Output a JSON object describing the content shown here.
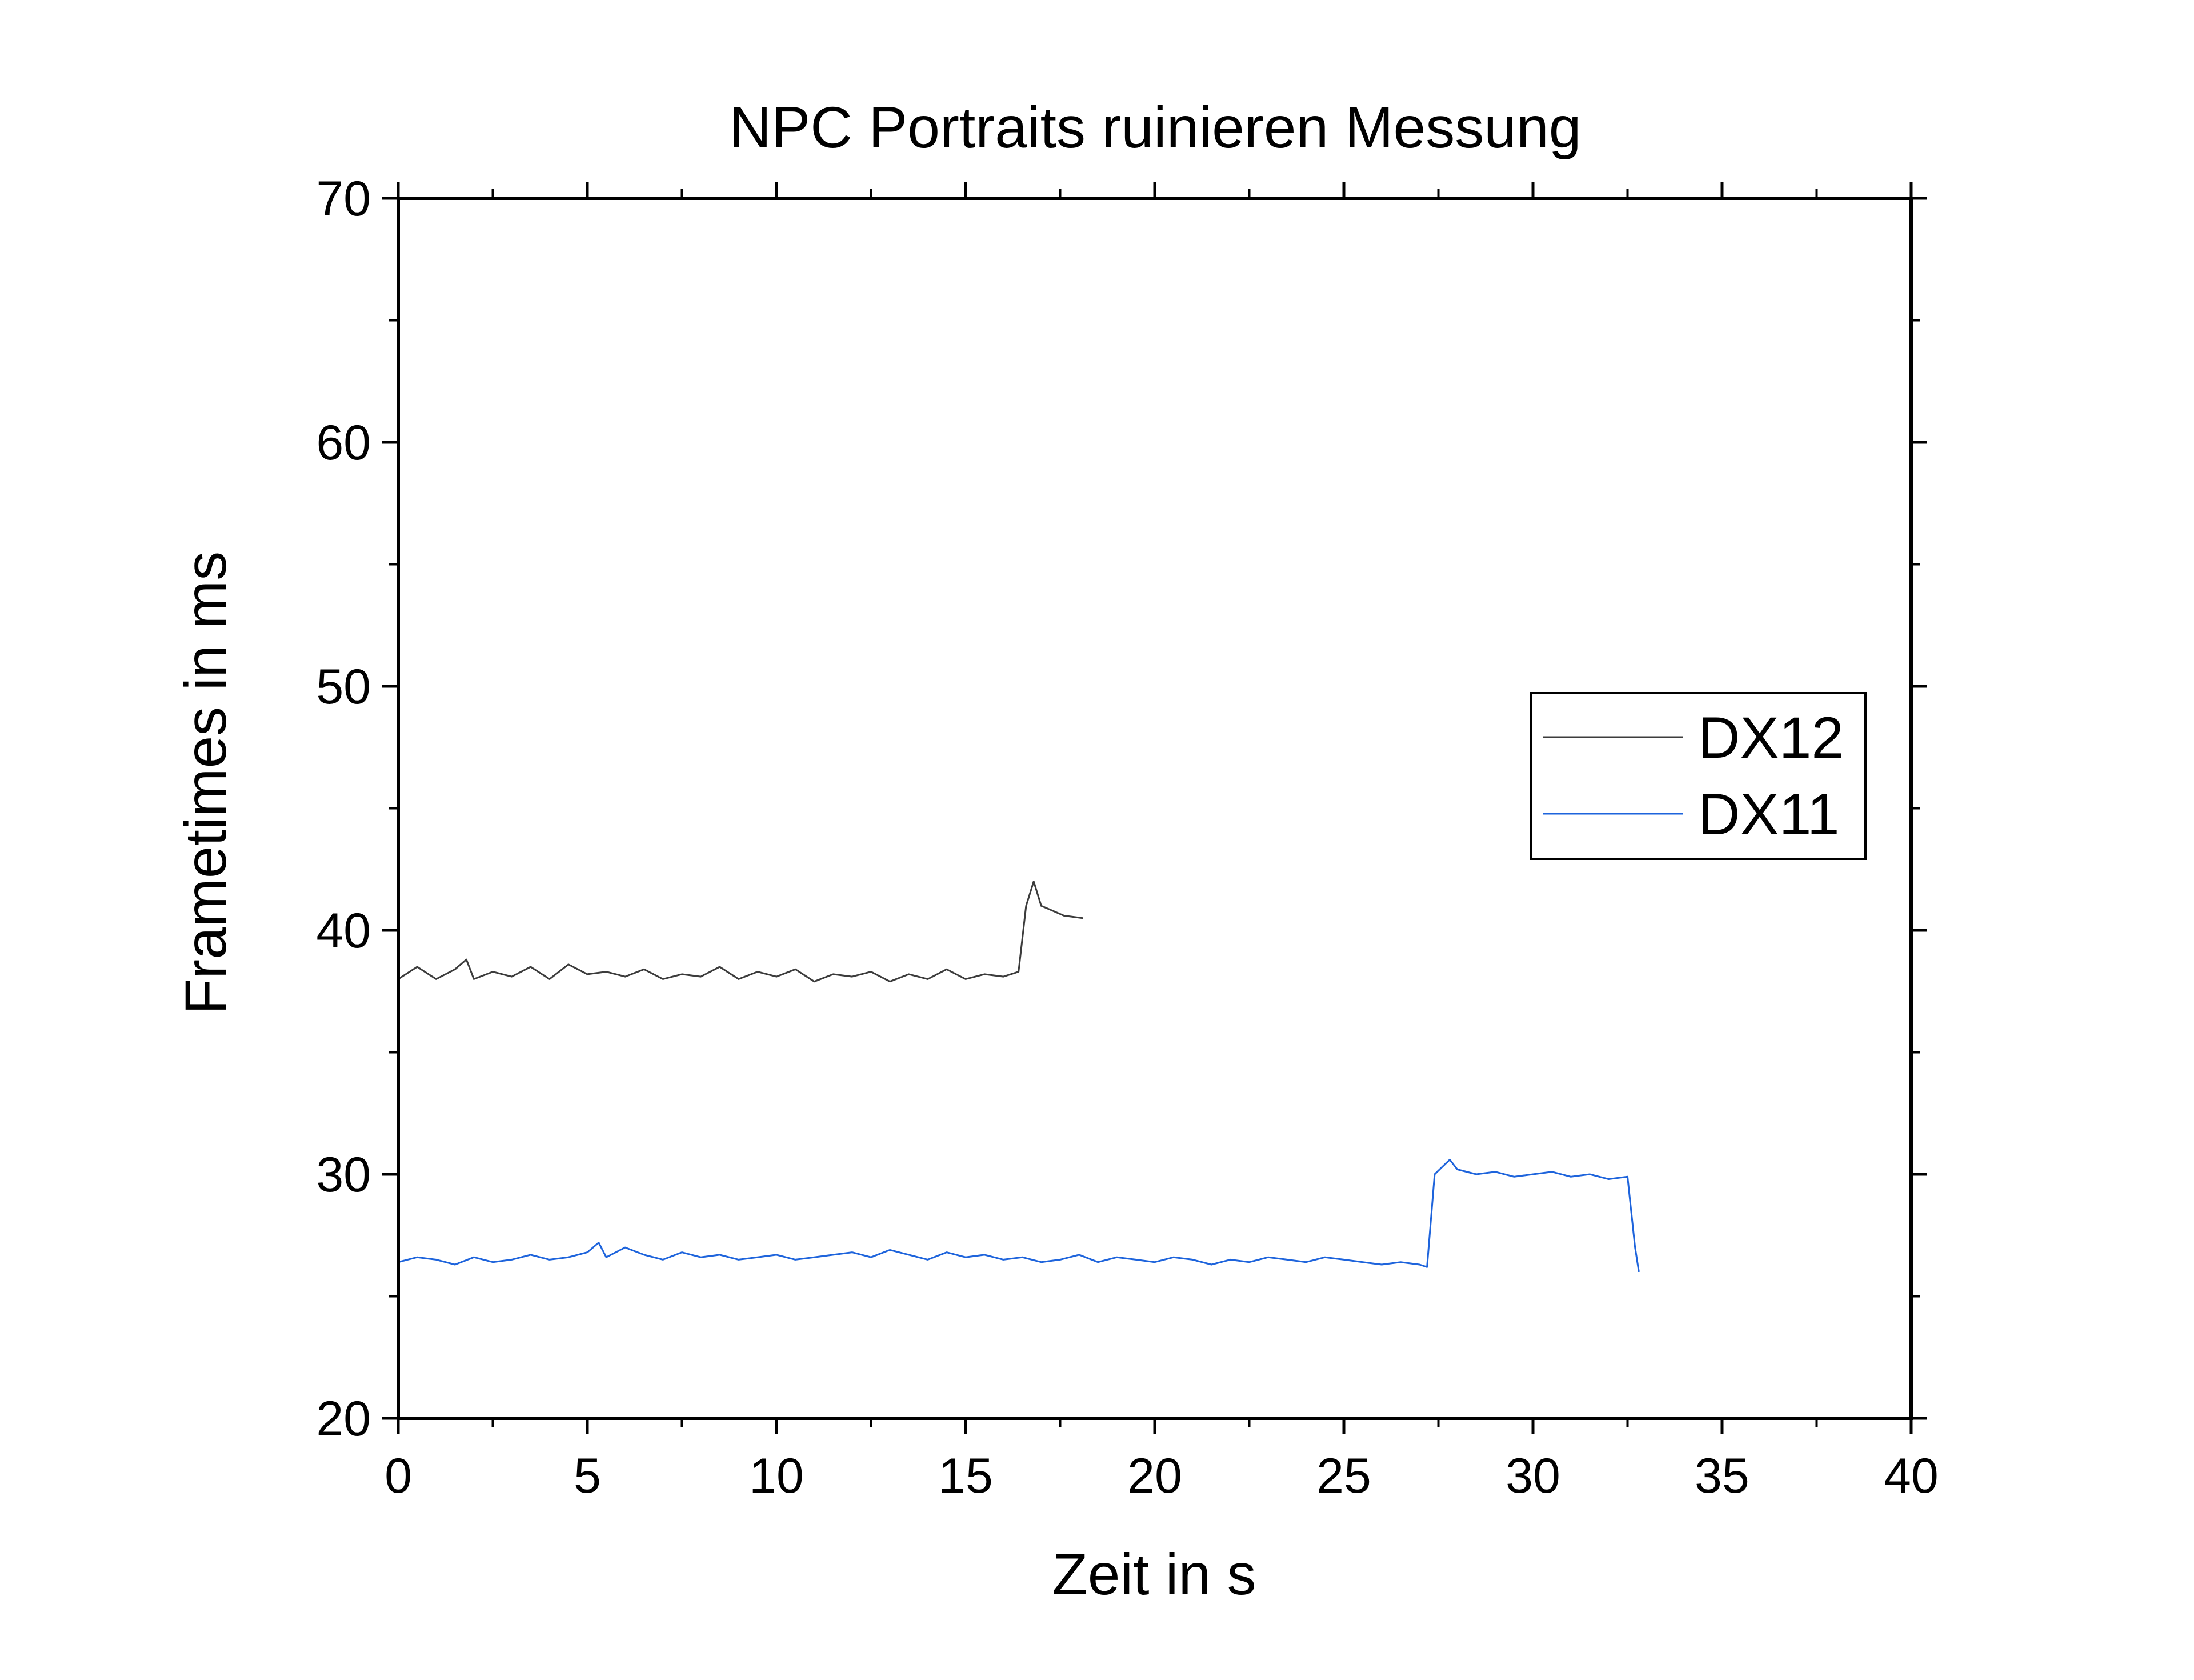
{
  "chart_data": {
    "type": "line",
    "title": "NPC Portraits ruinieren Messung",
    "xlabel": "Zeit in s",
    "ylabel": "Frametimes in ms",
    "xlim": [
      0,
      40
    ],
    "ylim": [
      20,
      70
    ],
    "x_ticks": [
      0,
      5,
      10,
      15,
      20,
      25,
      30,
      35,
      40
    ],
    "y_ticks": [
      20,
      30,
      40,
      50,
      60,
      70
    ],
    "x_tick_labels": [
      "0",
      "5",
      "10",
      "15",
      "20",
      "25",
      "30",
      "35",
      "40"
    ],
    "y_tick_labels": [
      "20",
      "30",
      "40",
      "50",
      "60",
      "70"
    ],
    "grid": false,
    "legend_position": "right",
    "series": [
      {
        "name": "DX12",
        "color": "#3c3c3c",
        "x": [
          0,
          0.5,
          1,
          1.5,
          1.8,
          2,
          2.5,
          3,
          3.5,
          4,
          4.5,
          5,
          5.5,
          6,
          6.5,
          7,
          7.5,
          8,
          8.5,
          9,
          9.5,
          10,
          10.5,
          11,
          11.5,
          12,
          12.5,
          13,
          13.5,
          14,
          14.5,
          15,
          15.5,
          16,
          16.4,
          16.6,
          16.8,
          17,
          17.3,
          17.6,
          18.1
        ],
        "y": [
          38,
          38.5,
          38,
          38.4,
          38.8,
          38,
          38.3,
          38.1,
          38.5,
          38,
          38.6,
          38.2,
          38.3,
          38.1,
          38.4,
          38,
          38.2,
          38.1,
          38.5,
          38,
          38.3,
          38.1,
          38.4,
          37.9,
          38.2,
          38.1,
          38.3,
          37.9,
          38.2,
          38,
          38.4,
          38,
          38.2,
          38.1,
          38.3,
          41,
          42,
          41,
          40.8,
          40.6,
          40.5
        ]
      },
      {
        "name": "DX11",
        "color": "#1e64dc",
        "x": [
          0,
          0.5,
          1,
          1.5,
          2,
          2.5,
          3,
          3.5,
          4,
          4.5,
          5,
          5.3,
          5.5,
          6,
          6.5,
          7,
          7.5,
          8,
          8.5,
          9,
          9.5,
          10,
          10.5,
          11,
          11.5,
          12,
          12.5,
          13,
          13.5,
          14,
          14.5,
          15,
          15.5,
          16,
          16.5,
          17,
          17.5,
          18,
          18.5,
          19,
          19.5,
          20,
          20.5,
          21,
          21.5,
          22,
          22.5,
          23,
          23.5,
          24,
          24.5,
          25,
          25.5,
          26,
          26.5,
          27,
          27.2,
          27.4,
          27.6,
          27.8,
          28,
          28.5,
          29,
          29.5,
          30,
          30.5,
          31,
          31.5,
          32,
          32.5,
          32.7,
          32.8
        ],
        "y": [
          26.4,
          26.6,
          26.5,
          26.3,
          26.6,
          26.4,
          26.5,
          26.7,
          26.5,
          26.6,
          26.8,
          27.2,
          26.6,
          27,
          26.7,
          26.5,
          26.8,
          26.6,
          26.7,
          26.5,
          26.6,
          26.7,
          26.5,
          26.6,
          26.7,
          26.8,
          26.6,
          26.9,
          26.7,
          26.5,
          26.8,
          26.6,
          26.7,
          26.5,
          26.6,
          26.4,
          26.5,
          26.7,
          26.4,
          26.6,
          26.5,
          26.4,
          26.6,
          26.5,
          26.3,
          26.5,
          26.4,
          26.6,
          26.5,
          26.4,
          26.6,
          26.5,
          26.4,
          26.3,
          26.4,
          26.3,
          26.2,
          30,
          30.3,
          30.6,
          30.2,
          30,
          30.1,
          29.9,
          30,
          30.1,
          29.9,
          30,
          29.8,
          29.9,
          27,
          26
        ]
      }
    ]
  }
}
